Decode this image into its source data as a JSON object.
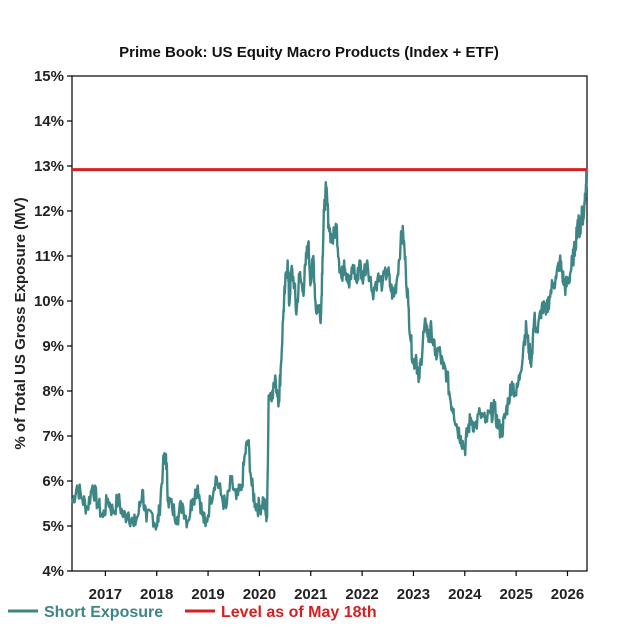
{
  "chart_data": {
    "type": "line",
    "title": "Prime Book: US Equity Macro Products (Index + ETF)",
    "xlabel": "",
    "ylabel": "% of Total US Gross Exposure (MV)",
    "xlim": [
      2016.35,
      2026.38
    ],
    "ylim": [
      4,
      15
    ],
    "x_ticks": [
      2017,
      2018,
      2019,
      2020,
      2021,
      2022,
      2023,
      2024,
      2025,
      2026
    ],
    "x_tick_labels": [
      "2017",
      "2018",
      "2019",
      "2020",
      "2021",
      "2022",
      "2023",
      "2024",
      "2025",
      "2026"
    ],
    "y_ticks": [
      4,
      5,
      6,
      7,
      8,
      9,
      10,
      11,
      12,
      13,
      14,
      15
    ],
    "y_tick_labels": [
      "4%",
      "5%",
      "6%",
      "7%",
      "8%",
      "9%",
      "10%",
      "11%",
      "12%",
      "13%",
      "14%",
      "15%"
    ],
    "grid": false,
    "legend": "bottom",
    "series": [
      {
        "name": "Short Exposure",
        "color": "#3e8585",
        "points": [
          [
            2016.35,
            5.5
          ],
          [
            2016.45,
            5.9
          ],
          [
            2016.55,
            5.6
          ],
          [
            2016.65,
            5.4
          ],
          [
            2016.75,
            5.9
          ],
          [
            2016.85,
            5.5
          ],
          [
            2016.95,
            5.2
          ],
          [
            2017.05,
            5.6
          ],
          [
            2017.15,
            5.3
          ],
          [
            2017.25,
            5.6
          ],
          [
            2017.35,
            5.2
          ],
          [
            2017.45,
            5.3
          ],
          [
            2017.55,
            5.0
          ],
          [
            2017.65,
            5.3
          ],
          [
            2017.72,
            5.8
          ],
          [
            2017.8,
            5.1
          ],
          [
            2017.9,
            5.3
          ],
          [
            2018.0,
            5.0
          ],
          [
            2018.05,
            5.3
          ],
          [
            2018.12,
            6.3
          ],
          [
            2018.18,
            6.6
          ],
          [
            2018.22,
            5.6
          ],
          [
            2018.3,
            5.4
          ],
          [
            2018.4,
            5.2
          ],
          [
            2018.5,
            5.5
          ],
          [
            2018.6,
            5.1
          ],
          [
            2018.7,
            5.6
          ],
          [
            2018.8,
            5.9
          ],
          [
            2018.88,
            5.3
          ],
          [
            2018.95,
            5.0
          ],
          [
            2019.05,
            5.6
          ],
          [
            2019.15,
            6.1
          ],
          [
            2019.25,
            5.7
          ],
          [
            2019.35,
            5.4
          ],
          [
            2019.45,
            6.0
          ],
          [
            2019.55,
            5.6
          ],
          [
            2019.65,
            5.8
          ],
          [
            2019.72,
            6.6
          ],
          [
            2019.78,
            6.9
          ],
          [
            2019.85,
            5.9
          ],
          [
            2019.92,
            5.5
          ],
          [
            2020.0,
            5.4
          ],
          [
            2020.08,
            5.6
          ],
          [
            2020.12,
            5.3
          ],
          [
            2020.15,
            5.2
          ],
          [
            2020.18,
            7.9
          ],
          [
            2020.25,
            8.0
          ],
          [
            2020.32,
            8.2
          ],
          [
            2020.38,
            7.8
          ],
          [
            2020.42,
            8.6
          ],
          [
            2020.47,
            9.8
          ],
          [
            2020.5,
            10.3
          ],
          [
            2020.55,
            10.9
          ],
          [
            2020.58,
            9.9
          ],
          [
            2020.62,
            10.7
          ],
          [
            2020.68,
            10.4
          ],
          [
            2020.72,
            9.7
          ],
          [
            2020.78,
            10.6
          ],
          [
            2020.85,
            10.2
          ],
          [
            2020.9,
            10.8
          ],
          [
            2020.95,
            11.3
          ],
          [
            2021.0,
            10.4
          ],
          [
            2021.05,
            11.0
          ],
          [
            2021.1,
            9.8
          ],
          [
            2021.15,
            9.9
          ],
          [
            2021.2,
            9.7
          ],
          [
            2021.23,
            11.0
          ],
          [
            2021.26,
            12.0
          ],
          [
            2021.3,
            12.5
          ],
          [
            2021.35,
            11.7
          ],
          [
            2021.42,
            11.3
          ],
          [
            2021.5,
            11.7
          ],
          [
            2021.55,
            10.9
          ],
          [
            2021.6,
            10.5
          ],
          [
            2021.65,
            10.9
          ],
          [
            2021.7,
            10.6
          ],
          [
            2021.75,
            10.3
          ],
          [
            2021.82,
            10.8
          ],
          [
            2021.9,
            10.4
          ],
          [
            2021.95,
            10.9
          ],
          [
            2022.0,
            10.5
          ],
          [
            2022.1,
            10.9
          ],
          [
            2022.2,
            10.2
          ],
          [
            2022.3,
            10.5
          ],
          [
            2022.4,
            10.4
          ],
          [
            2022.5,
            10.7
          ],
          [
            2022.55,
            10.3
          ],
          [
            2022.62,
            10.1
          ],
          [
            2022.68,
            10.5
          ],
          [
            2022.75,
            11.3
          ],
          [
            2022.8,
            11.5
          ],
          [
            2022.85,
            10.7
          ],
          [
            2022.9,
            9.9
          ],
          [
            2022.95,
            9.1
          ],
          [
            2023.0,
            8.6
          ],
          [
            2023.05,
            8.8
          ],
          [
            2023.1,
            8.2
          ],
          [
            2023.15,
            8.7
          ],
          [
            2023.2,
            9.3
          ],
          [
            2023.25,
            9.5
          ],
          [
            2023.3,
            9.1
          ],
          [
            2023.35,
            9.4
          ],
          [
            2023.42,
            8.8
          ],
          [
            2023.5,
            8.9
          ],
          [
            2023.58,
            8.5
          ],
          [
            2023.65,
            8.4
          ],
          [
            2023.72,
            7.8
          ],
          [
            2023.78,
            7.6
          ],
          [
            2023.85,
            7.2
          ],
          [
            2023.92,
            7.0
          ],
          [
            2024.0,
            6.7
          ],
          [
            2024.05,
            7.1
          ],
          [
            2024.12,
            7.4
          ],
          [
            2024.2,
            7.2
          ],
          [
            2024.3,
            7.5
          ],
          [
            2024.4,
            7.3
          ],
          [
            2024.5,
            7.5
          ],
          [
            2024.58,
            7.6
          ],
          [
            2024.65,
            7.2
          ],
          [
            2024.72,
            7.1
          ],
          [
            2024.78,
            7.4
          ],
          [
            2024.85,
            7.8
          ],
          [
            2024.92,
            8.2
          ],
          [
            2025.0,
            7.9
          ],
          [
            2025.08,
            8.4
          ],
          [
            2025.15,
            9.1
          ],
          [
            2025.2,
            9.4
          ],
          [
            2025.25,
            8.9
          ],
          [
            2025.3,
            8.7
          ],
          [
            2025.35,
            9.6
          ],
          [
            2025.42,
            9.3
          ],
          [
            2025.5,
            9.9
          ],
          [
            2025.58,
            9.7
          ],
          [
            2025.65,
            10.1
          ],
          [
            2025.72,
            10.4
          ],
          [
            2025.78,
            10.5
          ],
          [
            2025.85,
            10.9
          ],
          [
            2025.9,
            10.6
          ],
          [
            2025.95,
            10.3
          ],
          [
            2026.0,
            10.4
          ],
          [
            2026.05,
            10.6
          ],
          [
            2026.1,
            10.9
          ],
          [
            2026.15,
            11.2
          ],
          [
            2026.2,
            11.8
          ],
          [
            2026.25,
            11.5
          ],
          [
            2026.28,
            12.1
          ],
          [
            2026.3,
            11.7
          ],
          [
            2026.33,
            12.2
          ],
          [
            2026.36,
            12.6
          ],
          [
            2026.38,
            12.9
          ]
        ]
      },
      {
        "name": "Level as of May 18th",
        "color": "#d42020",
        "level": 12.92
      }
    ]
  }
}
